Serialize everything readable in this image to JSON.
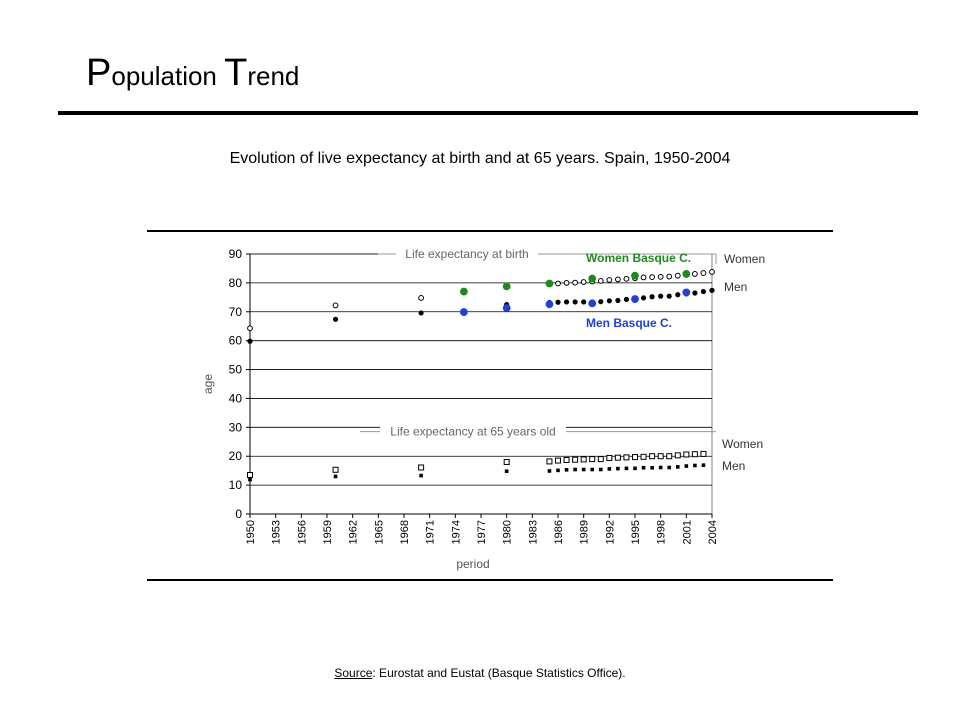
{
  "slide": {
    "title_cap1": "P",
    "title_rest1": "opulation ",
    "title_cap2": "T",
    "title_rest2": "rend"
  },
  "source": {
    "label": "Source",
    "text": ": Eurostat and Eustat (Basque Statistics Office)."
  },
  "chart_data": {
    "type": "scatter",
    "title": "Evolution of live expectancy at birth and at 65 years. Spain, 1950-2004",
    "xlabel": "period",
    "ylabel": "age",
    "xlim": [
      1950,
      2004
    ],
    "ylim": [
      0,
      90
    ],
    "yticks": [
      0,
      10,
      20,
      30,
      40,
      50,
      60,
      70,
      80,
      90
    ],
    "xticks": [
      1950,
      1953,
      1956,
      1959,
      1962,
      1965,
      1968,
      1971,
      1974,
      1977,
      1980,
      1983,
      1986,
      1989,
      1992,
      1995,
      1998,
      2001,
      2004
    ],
    "grid": "horizontal",
    "annotations": {
      "birth_group": "Life expectancy at birth",
      "over65_group": "Life expectancy at 65 years old",
      "women_basque": "Women Basque C.",
      "men_basque": "Men Basque C.",
      "women_birth": "Women",
      "men_birth": "Men",
      "women_65": "Women",
      "men_65": "Men"
    },
    "colors": {
      "basque_women": "#1a8c1a",
      "basque_men": "#1f3fe0",
      "spain": "#000000"
    },
    "series": [
      {
        "name": "Women",
        "group": "birth",
        "marker": "circle-open",
        "x": [
          1950,
          1960,
          1970,
          1985,
          1986,
          1987,
          1988,
          1989,
          1990,
          1991,
          1992,
          1993,
          1994,
          1995,
          1996,
          1997,
          1998,
          1999,
          2000,
          2001,
          2002,
          2003,
          2004
        ],
        "y": [
          64.3,
          72.2,
          74.8,
          79.6,
          79.8,
          80.0,
          80.1,
          80.3,
          80.5,
          80.7,
          81.0,
          81.2,
          81.4,
          81.6,
          81.9,
          82.0,
          82.1,
          82.2,
          82.5,
          82.8,
          83.1,
          83.4,
          83.8
        ]
      },
      {
        "name": "Men",
        "group": "birth",
        "marker": "circle-filled",
        "x": [
          1950,
          1960,
          1970,
          1980,
          1985,
          1986,
          1987,
          1988,
          1989,
          1990,
          1991,
          1992,
          1993,
          1994,
          1995,
          1996,
          1997,
          1998,
          1999,
          2000,
          2001,
          2002,
          2003,
          2004
        ],
        "y": [
          59.8,
          67.4,
          69.6,
          72.5,
          73.2,
          73.3,
          73.4,
          73.4,
          73.4,
          73.4,
          73.5,
          73.8,
          73.9,
          74.3,
          74.4,
          74.8,
          75.2,
          75.4,
          75.4,
          75.9,
          76.2,
          76.5,
          77.0,
          77.4
        ]
      },
      {
        "name": "Women Basque C.",
        "group": "birth",
        "marker": "circle-filled",
        "color": "basque_women",
        "x": [
          1975,
          1980,
          1985,
          1990,
          1995,
          2001
        ],
        "y": [
          77.0,
          78.8,
          79.8,
          81.5,
          82.5,
          83.1
        ]
      },
      {
        "name": "Men Basque C.",
        "group": "birth",
        "marker": "circle-filled",
        "color": "basque_men",
        "x": [
          1975,
          1980,
          1985,
          1990,
          1995,
          2001
        ],
        "y": [
          69.9,
          71.3,
          72.6,
          72.9,
          74.4,
          76.7
        ]
      },
      {
        "name": "Women",
        "group": "65",
        "marker": "square-open",
        "x": [
          1950,
          1960,
          1970,
          1980,
          1985,
          1986,
          1987,
          1988,
          1989,
          1990,
          1991,
          1992,
          1993,
          1994,
          1995,
          1996,
          1997,
          1998,
          1999,
          2000,
          2001,
          2002,
          2003
        ],
        "y": [
          13.5,
          15.3,
          16.1,
          18.0,
          18.2,
          18.5,
          18.7,
          18.8,
          18.9,
          19.0,
          19.0,
          19.4,
          19.5,
          19.6,
          19.7,
          19.8,
          20.0,
          20.0,
          20.0,
          20.3,
          20.6,
          20.7,
          20.8
        ]
      },
      {
        "name": "Men",
        "group": "65",
        "marker": "square-filled",
        "x": [
          1950,
          1960,
          1970,
          1980,
          1985,
          1986,
          1987,
          1988,
          1989,
          1990,
          1991,
          1992,
          1993,
          1994,
          1995,
          1996,
          1997,
          1998,
          1999,
          2000,
          2001,
          2002,
          2003
        ],
        "y": [
          11.9,
          13.0,
          13.3,
          14.8,
          14.9,
          15.1,
          15.3,
          15.4,
          15.4,
          15.4,
          15.4,
          15.6,
          15.7,
          15.8,
          15.8,
          16.0,
          16.0,
          16.1,
          16.1,
          16.3,
          16.6,
          16.8,
          16.9
        ]
      }
    ]
  }
}
